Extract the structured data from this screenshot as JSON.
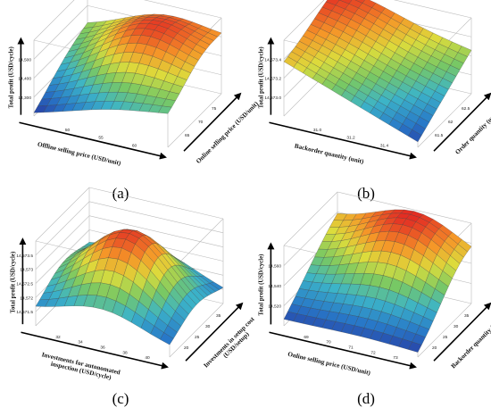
{
  "chart_data": [
    {
      "type": "surface",
      "panel_label": "(a)",
      "xlabel": "Offline selling price (USD/unit)",
      "ylabel": "Online selling price (USD/unit)",
      "zlabel": "Total profit (USD/cycle)",
      "x_ticks": [
        "50",
        "55",
        "60"
      ],
      "y_ticks": [
        "65",
        "70",
        "75"
      ],
      "z_ticks": [
        "14,300",
        "14,400",
        "14,500"
      ],
      "xlim": [
        48,
        62
      ],
      "ylim": [
        63,
        77
      ],
      "zlim": [
        14250,
        14560
      ],
      "peak": {
        "x": 56,
        "y": 72,
        "z": 14540
      },
      "corner_z": {
        "x_low_y_low": 14260,
        "x_high_y_low": 14380,
        "x_low_y_high": 14400,
        "x_high_y_high": 14470
      }
    },
    {
      "type": "surface",
      "panel_label": "(b)",
      "xlabel": "Backorder quantity (unit)",
      "ylabel": "Order quantity (unit)",
      "zlabel": "Total profit (USD/cycle)",
      "x_ticks": [
        "31.0",
        "31.2",
        "31.4"
      ],
      "y_ticks": [
        "61.5",
        "62",
        "62.5"
      ],
      "z_ticks": [
        "14,573.0",
        "14,573.2",
        "14,573.4"
      ],
      "xlim": [
        30.9,
        31.5
      ],
      "ylim": [
        61.2,
        62.8
      ],
      "zlim": [
        14572.8,
        14573.5
      ],
      "peak": {
        "x": 31.0,
        "y": 62.6,
        "z": 14573.45
      },
      "corner_z": {
        "x_low_y_low": 14573.3,
        "x_high_y_low": 14572.85,
        "x_low_y_high": 14573.42,
        "x_high_y_high": 14573.2
      }
    },
    {
      "type": "surface",
      "panel_label": "(c)",
      "xlabel": "Investments for autonomated inspection (USD/cycle)",
      "ylabel": "Investments in setup cost (USD/setup)",
      "zlabel": "Total profit (USD/cycle)",
      "x_ticks": [
        "32",
        "34",
        "36",
        "38",
        "40"
      ],
      "y_ticks": [
        "20",
        "25",
        "30",
        "35"
      ],
      "z_ticks": [
        "14,571.5",
        "14,572",
        "14,572.5",
        "14,573",
        "14,573.5"
      ],
      "xlim": [
        32,
        40
      ],
      "ylim": [
        20,
        36
      ],
      "zlim": [
        14571.2,
        14573.6
      ],
      "peak": {
        "x": 36,
        "y": 28,
        "z": 14573.5
      },
      "corner_z": {
        "x_low_y_low": 14571.6,
        "x_high_y_low": 14571.4,
        "x_low_y_high": 14571.9,
        "x_high_y_high": 14571.5
      }
    },
    {
      "type": "surface",
      "panel_label": "(d)",
      "xlabel": "Online selling price (USD/unit)",
      "ylabel": "Backorder quantity (unit)",
      "zlabel": "Total profit (USD/cycle)",
      "x_ticks": [
        "69",
        "70",
        "71",
        "72",
        "73"
      ],
      "y_ticks": [
        "20",
        "25",
        "30",
        "35"
      ],
      "z_ticks": [
        "14,520",
        "14,540",
        "14,560"
      ],
      "xlim": [
        68.5,
        73.5
      ],
      "ylim": [
        19,
        37
      ],
      "zlim": [
        14505,
        14568
      ],
      "peak": {
        "x": 71.5,
        "y": 33,
        "z": 14565
      },
      "corner_z": {
        "x_low_y_low": 14510,
        "x_high_y_low": 14508,
        "x_low_y_high": 14548,
        "x_high_y_high": 14540
      }
    }
  ]
}
